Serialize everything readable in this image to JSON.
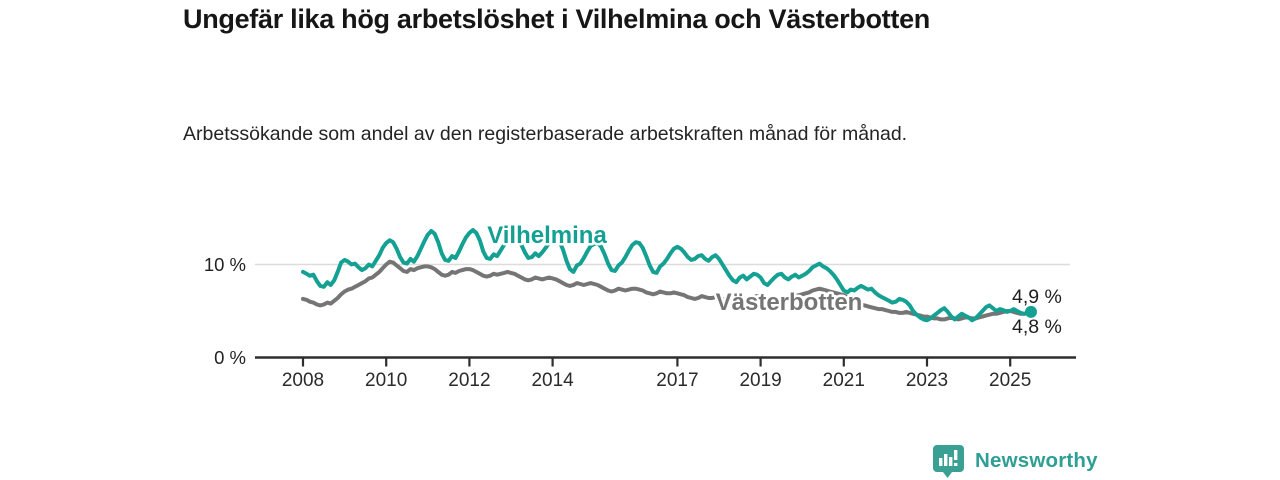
{
  "page": {
    "title": "Ungefär lika hög arbetslöshet i Vilhelmina och Västerbotten",
    "subtitle": "Arbetssökande som andel av den registerbaserade arbetskraften månad för månad."
  },
  "footer": {
    "brand_name": "Newsworthy",
    "logo_icon": "bar-chart-speech-bubble-icon"
  },
  "colors": {
    "vilhelmina_teal": "#14a093",
    "vasterbotten_gray": "#757575",
    "brand_teal": "#2f9e94",
    "gridline": "#dcdcdc",
    "axis": "#2e2e2e",
    "text_dark": "#1f1f1f"
  },
  "chart_data": {
    "type": "line",
    "x_frequency": "monthly",
    "x_start": "2008-01",
    "x_end": "2025-07",
    "x_tick_years": [
      2008,
      2010,
      2012,
      2014,
      2017,
      2019,
      2021,
      2023,
      2025
    ],
    "y_ticks": [
      {
        "value": 0,
        "label": "0 %"
      },
      {
        "value": 10,
        "label": "10 %"
      }
    ],
    "ylim": [
      0,
      15.3
    ],
    "unit": "%",
    "grid": "horizontal-10-only",
    "legend_position": "inline-labels",
    "series": [
      {
        "name": "Vilhelmina",
        "id": "vilhelmina",
        "color": "#14a093",
        "end_label": "4,9 %",
        "end_value": 4.9,
        "has_end_dot": true,
        "values": [
          9.2,
          9.0,
          8.8,
          8.9,
          8.2,
          7.7,
          7.6,
          8.1,
          7.8,
          8.3,
          9.2,
          10.2,
          10.5,
          10.3,
          10.0,
          10.1,
          9.7,
          9.4,
          9.6,
          10.0,
          9.8,
          10.4,
          11.0,
          11.8,
          12.3,
          12.6,
          12.4,
          11.7,
          10.8,
          10.2,
          10.1,
          10.6,
          10.3,
          10.9,
          11.7,
          12.5,
          13.2,
          13.6,
          13.3,
          12.4,
          11.2,
          10.5,
          10.4,
          10.9,
          10.7,
          11.4,
          12.2,
          12.9,
          13.4,
          13.7,
          13.4,
          12.6,
          11.4,
          10.7,
          10.6,
          11.1,
          10.9,
          11.5,
          12.1,
          12.7,
          13.1,
          13.2,
          12.8,
          12.1,
          11.3,
          10.7,
          10.8,
          11.2,
          10.9,
          11.3,
          11.8,
          12.3,
          12.8,
          13.0,
          12.5,
          11.6,
          10.4,
          9.5,
          9.2,
          9.9,
          10.1,
          10.7,
          11.4,
          12.0,
          12.2,
          12.3,
          11.9,
          11.1,
          10.1,
          9.4,
          9.3,
          9.9,
          10.2,
          10.8,
          11.5,
          12.1,
          12.4,
          12.3,
          11.8,
          10.9,
          9.9,
          9.2,
          9.1,
          9.8,
          10.1,
          10.6,
          11.2,
          11.7,
          11.9,
          11.7,
          11.3,
          10.8,
          10.5,
          10.6,
          10.9,
          11.0,
          10.6,
          10.4,
          10.8,
          11.0,
          10.6,
          10.0,
          9.4,
          8.8,
          8.3,
          8.1,
          8.6,
          8.8,
          8.4,
          8.7,
          9.0,
          8.9,
          8.6,
          8.0,
          7.8,
          8.2,
          8.6,
          8.9,
          9.0,
          8.6,
          8.4,
          8.7,
          8.9,
          8.6,
          8.8,
          9.0,
          9.3,
          9.7,
          9.9,
          10.1,
          9.8,
          9.6,
          9.3,
          8.9,
          8.4,
          7.8,
          7.2,
          7.0,
          7.3,
          7.2,
          7.5,
          7.7,
          7.5,
          7.3,
          7.4,
          7.0,
          6.7,
          6.5,
          6.3,
          6.1,
          5.9,
          6.0,
          6.3,
          6.2,
          6.0,
          5.6,
          5.0,
          4.6,
          4.3,
          4.1,
          4.0,
          4.2,
          4.5,
          4.8,
          5.1,
          5.3,
          4.9,
          4.4,
          4.1,
          4.4,
          4.7,
          4.5,
          4.3,
          4.0,
          4.2,
          4.6,
          5.0,
          5.4,
          5.6,
          5.3,
          5.0,
          5.2,
          5.1,
          4.9,
          5.0,
          5.2,
          5.0,
          4.8,
          4.7,
          4.8,
          4.9
        ]
      },
      {
        "name": "Västerbotten",
        "id": "vasterbotten",
        "color": "#757575",
        "end_label": "4,8 %",
        "end_value": 4.8,
        "has_end_dot": false,
        "values": [
          6.3,
          6.2,
          6.0,
          5.9,
          5.7,
          5.6,
          5.7,
          5.9,
          5.8,
          6.1,
          6.4,
          6.8,
          7.1,
          7.3,
          7.4,
          7.6,
          7.8,
          8.0,
          8.2,
          8.5,
          8.6,
          8.9,
          9.2,
          9.6,
          10.0,
          10.3,
          10.2,
          9.9,
          9.6,
          9.3,
          9.2,
          9.5,
          9.4,
          9.6,
          9.7,
          9.8,
          9.8,
          9.7,
          9.5,
          9.2,
          8.9,
          8.8,
          8.9,
          9.2,
          9.1,
          9.3,
          9.4,
          9.5,
          9.5,
          9.4,
          9.2,
          9.0,
          8.8,
          8.7,
          8.8,
          9.0,
          8.9,
          9.0,
          9.1,
          9.2,
          9.1,
          9.0,
          8.8,
          8.6,
          8.4,
          8.3,
          8.4,
          8.6,
          8.5,
          8.4,
          8.5,
          8.6,
          8.5,
          8.4,
          8.2,
          8.0,
          7.8,
          7.7,
          7.8,
          8.0,
          7.9,
          7.8,
          7.9,
          8.0,
          7.9,
          7.8,
          7.6,
          7.4,
          7.2,
          7.1,
          7.2,
          7.4,
          7.3,
          7.2,
          7.3,
          7.4,
          7.4,
          7.3,
          7.2,
          7.0,
          6.9,
          6.8,
          6.9,
          7.1,
          7.0,
          6.9,
          6.9,
          7.0,
          6.9,
          6.8,
          6.7,
          6.5,
          6.4,
          6.3,
          6.4,
          6.6,
          6.5,
          6.4,
          6.4,
          6.5,
          6.4,
          6.3,
          6.2,
          6.1,
          6.0,
          5.9,
          6.0,
          6.2,
          6.3,
          6.4,
          6.5,
          6.6,
          6.6,
          6.5,
          6.4,
          6.3,
          6.2,
          6.2,
          6.3,
          6.5,
          6.4,
          6.5,
          6.6,
          6.7,
          6.8,
          6.9,
          7.0,
          7.2,
          7.3,
          7.4,
          7.3,
          7.2,
          7.1,
          7.0,
          6.9,
          6.8,
          6.7,
          6.5,
          6.3,
          6.1,
          5.9,
          5.7,
          5.6,
          5.5,
          5.4,
          5.3,
          5.2,
          5.2,
          5.1,
          5.0,
          4.9,
          4.9,
          4.8,
          4.8,
          4.9,
          4.8,
          4.7,
          4.6,
          4.5,
          4.4,
          4.4,
          4.3,
          4.2,
          4.2,
          4.1,
          4.1,
          4.2,
          4.3,
          4.2,
          4.1,
          4.2,
          4.3,
          4.3,
          4.2,
          4.2,
          4.3,
          4.4,
          4.5,
          4.6,
          4.7,
          4.7,
          4.8,
          4.9,
          5.0,
          5.0,
          4.9,
          4.8,
          4.7,
          4.7,
          4.8,
          4.8
        ]
      }
    ]
  }
}
